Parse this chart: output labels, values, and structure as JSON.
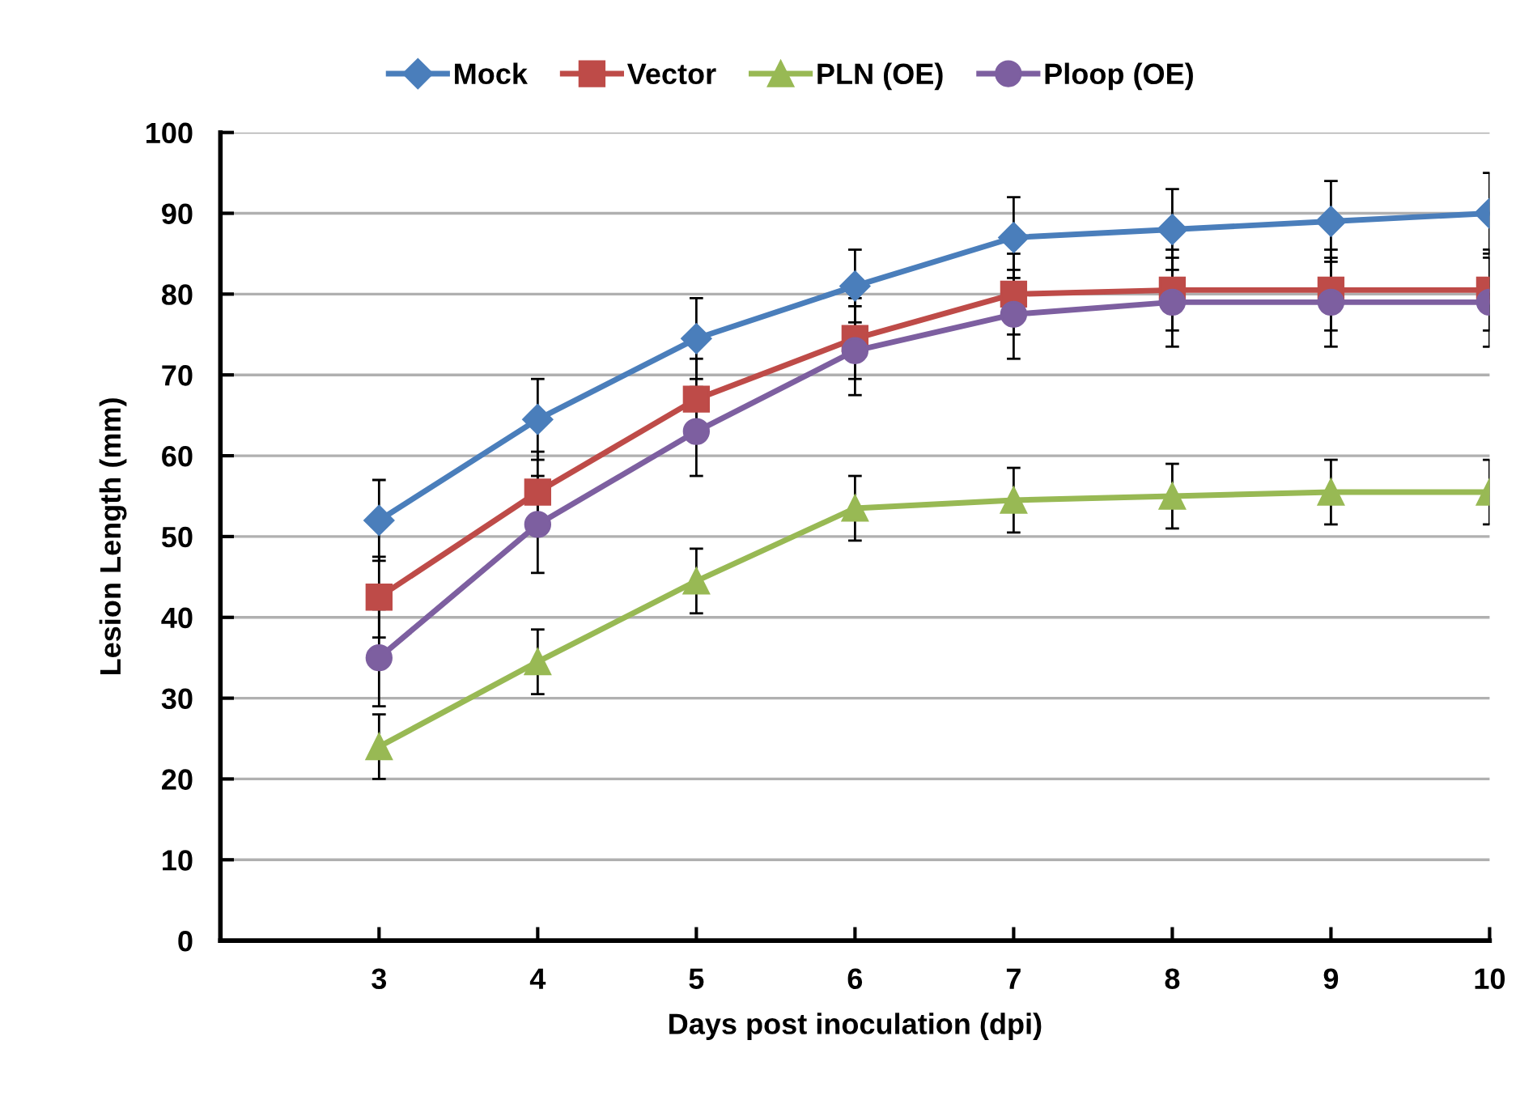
{
  "chart_data": {
    "type": "line",
    "xlabel": "Days post inoculation (dpi)",
    "ylabel": "Lesion Length (mm)",
    "x": [
      3,
      4,
      5,
      6,
      7,
      8,
      9,
      10
    ],
    "xlim": [
      2,
      10
    ],
    "xticks": [
      3,
      4,
      5,
      6,
      7,
      8,
      9,
      10
    ],
    "ylim": [
      0,
      100
    ],
    "yticks": [
      0,
      10,
      20,
      30,
      40,
      50,
      60,
      70,
      80,
      90,
      100
    ],
    "grid": "y",
    "legend": "top",
    "line_style": "solid",
    "series": [
      {
        "name": "Mock",
        "color": "#4a7ebb",
        "marker": "diamond",
        "values": [
          52,
          64.5,
          74.5,
          81,
          87,
          88,
          89,
          90
        ],
        "errors": [
          5,
          5,
          5,
          4.5,
          5,
          5,
          5,
          5
        ]
      },
      {
        "name": "Vector",
        "color": "#be4b48",
        "marker": "square",
        "values": [
          42.5,
          55.5,
          67,
          74.5,
          80,
          80.5,
          80.5,
          80.5
        ],
        "errors": [
          5,
          5,
          5,
          5,
          5,
          5,
          5,
          5
        ]
      },
      {
        "name": "PLN (OE)",
        "color": "#98b954",
        "marker": "triangle",
        "values": [
          24,
          34.5,
          44.5,
          53.5,
          54.5,
          55,
          55.5,
          55.5
        ],
        "errors": [
          4,
          4,
          4,
          4,
          4,
          4,
          4,
          4
        ]
      },
      {
        "name": "Ploop (OE)",
        "color": "#7d5fa0",
        "marker": "circle",
        "values": [
          35,
          51.5,
          63,
          73,
          77.5,
          79,
          79,
          79
        ],
        "errors": [
          6,
          6,
          5.5,
          5.5,
          5.5,
          5.5,
          5.5,
          5.5
        ]
      }
    ]
  }
}
